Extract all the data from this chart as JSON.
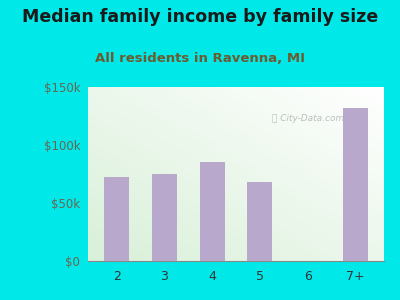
{
  "title": "Median family income by family size",
  "subtitle": "All residents in Ravenna, MI",
  "categories": [
    "2",
    "3",
    "4",
    "5",
    "6",
    "7+"
  ],
  "values": [
    72000,
    75000,
    85000,
    68000,
    0,
    132000
  ],
  "bar_color": "#b8a8cc",
  "background_outer": "#00e8e8",
  "plot_bg_topleft": "#d4edd4",
  "plot_bg_bottomright": "#f5fef8",
  "title_color": "#1a1a1a",
  "subtitle_color": "#6b5b2e",
  "ytick_color": "#666655",
  "xtick_color": "#333333",
  "ylim": [
    0,
    150000
  ],
  "yticks": [
    0,
    50000,
    100000,
    150000
  ],
  "title_fontsize": 12.5,
  "subtitle_fontsize": 9.5
}
